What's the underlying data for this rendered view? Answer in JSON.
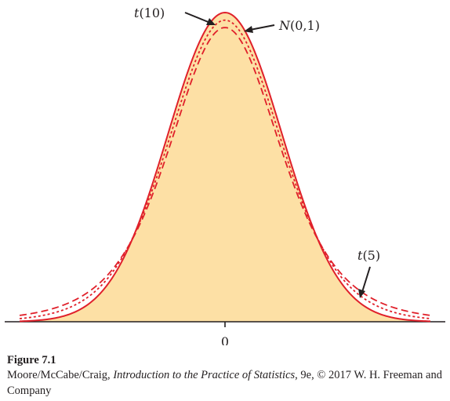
{
  "chart_data": {
    "type": "line",
    "x_tick_labels": [
      "0"
    ],
    "series": [
      {
        "name": "N(0,1)",
        "distribution": "normal",
        "mean": 0,
        "sd": 1,
        "style": "solid",
        "fill": "#fde0a5"
      },
      {
        "name": "t(10)",
        "distribution": "t",
        "df": 10,
        "style": "dotted"
      },
      {
        "name": "t(5)",
        "distribution": "t",
        "df": 5,
        "style": "dashed"
      }
    ],
    "xlim": [
      -3.6,
      3.6
    ],
    "grid": false,
    "colors": {
      "curve": "#e0202a",
      "fill": "#fde0a5",
      "axis": "#231f20"
    },
    "annotations": [
      {
        "label_prefix": "t",
        "label_rest": "(10)",
        "target": "t(10)"
      },
      {
        "label_prefix": "N",
        "label_rest": "(0,1)",
        "target": "N(0,1)"
      },
      {
        "label_prefix": "t",
        "label_rest": "(5)",
        "target": "t(5)"
      }
    ]
  },
  "caption": {
    "figure_number": "Figure 7.1",
    "authors": "Moore/McCabe/Craig, ",
    "book_title": "Introduction to the Practice of Statistics",
    "rest": ", 9e, © 2017 W. H. Freeman and Company"
  }
}
